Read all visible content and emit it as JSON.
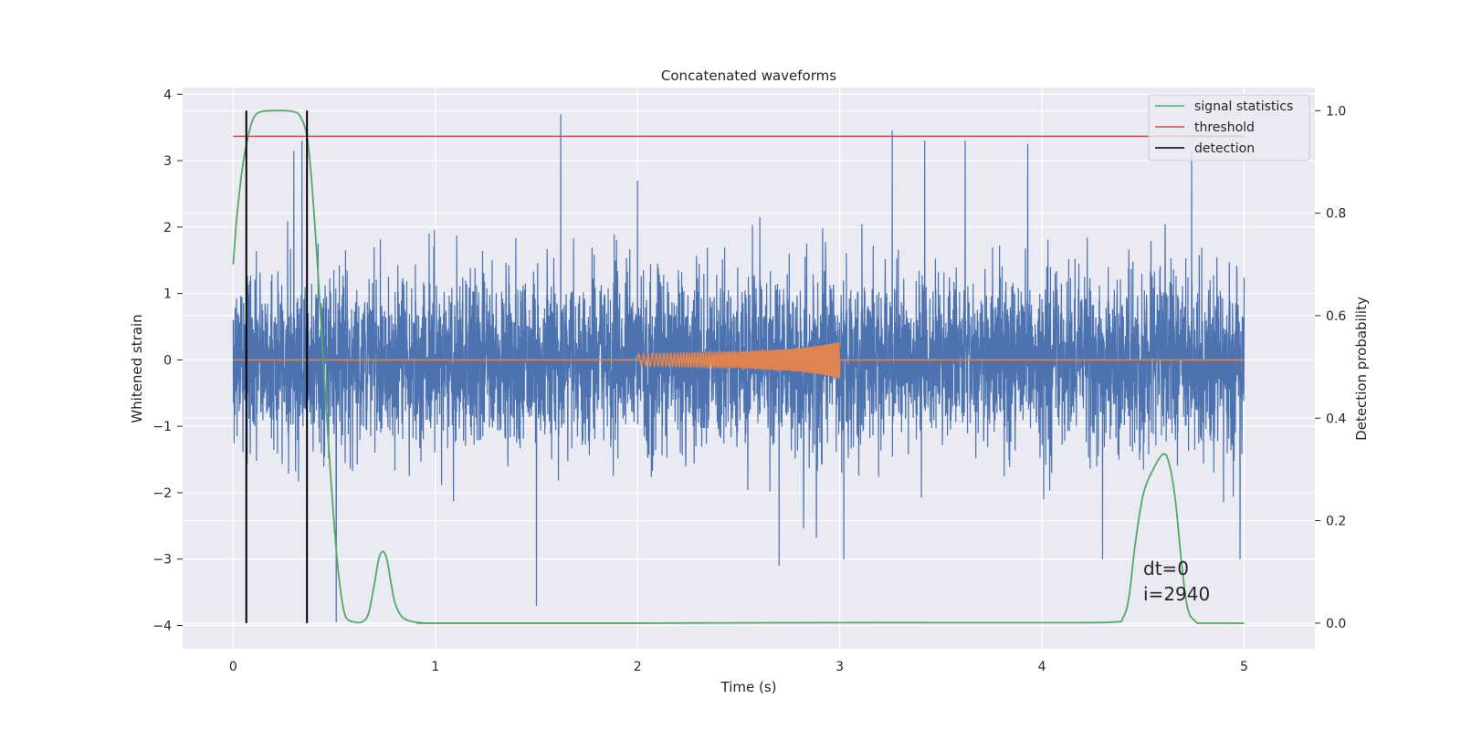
{
  "chart_data": {
    "type": "line",
    "title": "Concatenated waveforms",
    "xlabel": "Time (s)",
    "ylabel": "Whitened strain",
    "y2label": "Detection probability",
    "xlim": [
      -0.25,
      5.35
    ],
    "ylim": [
      -4.35,
      4.1
    ],
    "y2lim": [
      -0.05,
      1.045
    ],
    "xticks": [
      0,
      1,
      2,
      3,
      4,
      5
    ],
    "yticks": [
      -4,
      -3,
      -2,
      -1,
      0,
      1,
      2,
      3,
      4
    ],
    "y2ticks": [
      0.0,
      0.2,
      0.4,
      0.6,
      0.8,
      1.0
    ],
    "grid": true,
    "legend_position": "top-right",
    "colors": {
      "strain": "#4c72b0",
      "template": "#dd8452",
      "signal": "#55a868",
      "threshold": "#c44e52",
      "detection": "#000000",
      "background": "#eaeaf2",
      "grid": "#ffffff"
    },
    "series": [
      {
        "name": "",
        "role": "strain",
        "axis": "left",
        "x_range": [
          0,
          5
        ],
        "noise_sigma": 0.9,
        "extremes": [
          {
            "x": 0.3,
            "y": 3.15
          },
          {
            "x": 0.34,
            "y": 3.3
          },
          {
            "x": 0.51,
            "y": -3.95
          },
          {
            "x": 1.5,
            "y": -3.7
          },
          {
            "x": 1.62,
            "y": 3.7
          },
          {
            "x": 2.0,
            "y": 2.7
          },
          {
            "x": 2.7,
            "y": -3.1
          },
          {
            "x": 3.02,
            "y": -3.0
          },
          {
            "x": 3.26,
            "y": 3.45
          },
          {
            "x": 3.42,
            "y": 3.3
          },
          {
            "x": 3.62,
            "y": 3.3
          },
          {
            "x": 3.93,
            "y": 3.25
          },
          {
            "x": 4.3,
            "y": -3.0
          },
          {
            "x": 4.98,
            "y": -3.0
          },
          {
            "x": 4.74,
            "y": 3.15
          }
        ]
      },
      {
        "name": "",
        "role": "template",
        "axis": "left",
        "x": [
          0,
          2.0,
          2.5,
          2.8,
          2.95,
          3.0,
          3.0,
          5.0
        ],
        "envelope": [
          0,
          0.09,
          0.12,
          0.17,
          0.24,
          0.28,
          0,
          0
        ]
      },
      {
        "name": "signal statistics",
        "role": "signal",
        "axis": "right",
        "x": [
          0.0,
          0.02,
          0.05,
          0.08,
          0.1,
          0.12,
          0.15,
          0.2,
          0.25,
          0.3,
          0.33,
          0.36,
          0.38,
          0.4,
          0.42,
          0.44,
          0.46,
          0.48,
          0.5,
          0.52,
          0.54,
          0.56,
          0.6,
          0.64,
          0.67,
          0.7,
          0.72,
          0.74,
          0.76,
          0.78,
          0.8,
          0.83,
          0.86,
          0.9,
          0.95,
          1.0,
          2.0,
          3.0,
          4.0,
          4.35,
          4.4,
          4.43,
          4.46,
          4.5,
          4.55,
          4.6,
          4.63,
          4.66,
          4.69,
          4.72,
          4.76,
          4.8,
          5.0
        ],
        "y": [
          0.7,
          0.8,
          0.9,
          0.96,
          0.985,
          0.995,
          0.999,
          1.0,
          1.0,
          0.998,
          0.99,
          0.96,
          0.9,
          0.8,
          0.68,
          0.55,
          0.42,
          0.3,
          0.19,
          0.1,
          0.04,
          0.01,
          0.002,
          0.003,
          0.02,
          0.08,
          0.125,
          0.14,
          0.125,
          0.08,
          0.04,
          0.015,
          0.006,
          0.002,
          0.0,
          0.0,
          0.0,
          0.001,
          0.001,
          0.002,
          0.01,
          0.05,
          0.15,
          0.25,
          0.3,
          0.33,
          0.31,
          0.24,
          0.12,
          0.03,
          0.003,
          0.0,
          0.0
        ]
      },
      {
        "name": "threshold",
        "role": "threshold",
        "axis": "right",
        "x": [
          0,
          5
        ],
        "y": [
          0.95,
          0.95
        ]
      },
      {
        "name": "detection",
        "role": "detection",
        "axis": "right",
        "x_positions": [
          0.065,
          0.365
        ],
        "y": [
          0.0,
          1.0
        ]
      }
    ],
    "annotations": [
      "dt=0",
      "i=2940"
    ]
  }
}
